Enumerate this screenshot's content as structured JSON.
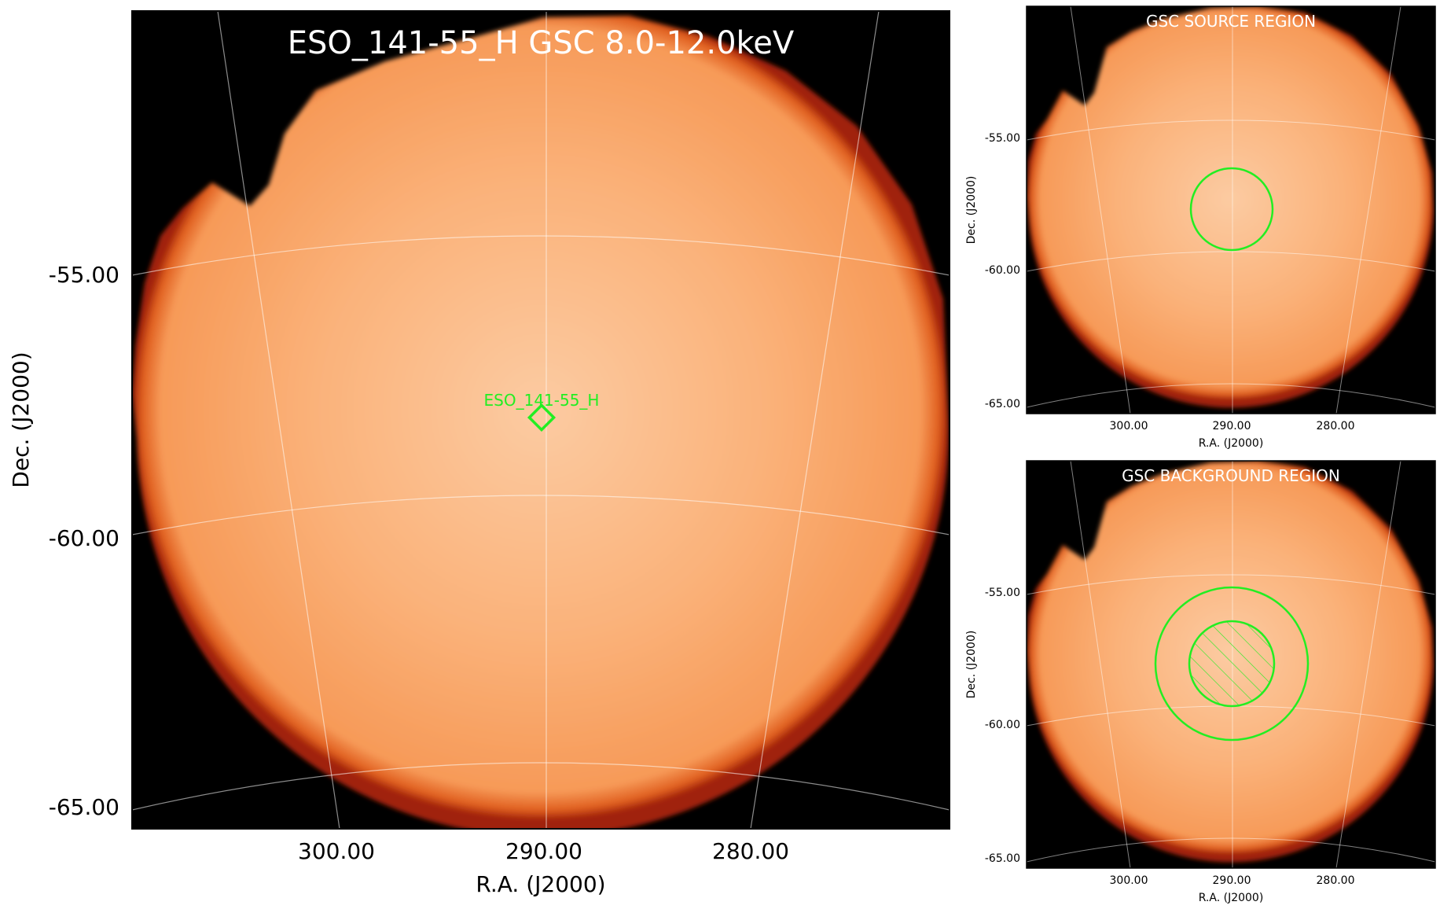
{
  "main_panel": {
    "title": "ESO_141-55_H GSC 8.0-12.0keV",
    "source_label": "ESO_141-55_H",
    "xlabel": "R.A. (J2000)",
    "ylabel": "Dec. (J2000)",
    "xticks": [
      "300.00",
      "290.00",
      "280.00"
    ],
    "yticks": [
      "-55.00",
      "-60.00",
      "-65.00"
    ]
  },
  "source_panel": {
    "title": "GSC SOURCE REGION",
    "xlabel": "R.A. (J2000)",
    "ylabel": "Dec. (J2000)",
    "xticks": [
      "300.00",
      "290.00",
      "280.00"
    ],
    "yticks": [
      "-55.00",
      "-60.00",
      "-65.00"
    ]
  },
  "background_panel": {
    "title": "GSC BACKGROUND REGION",
    "xlabel": "R.A. (J2000)",
    "ylabel": "Dec. (J2000)",
    "xticks": [
      "300.00",
      "290.00",
      "280.00"
    ],
    "yticks": [
      "-55.00",
      "-60.00",
      "-65.00"
    ]
  },
  "colors": {
    "sky_background": "#000000",
    "image_fill": "#f9a868",
    "image_center": "#fccaa0",
    "image_edge": "#b83010",
    "region_color": "#22ee22",
    "grid_color": "#ffffff"
  }
}
